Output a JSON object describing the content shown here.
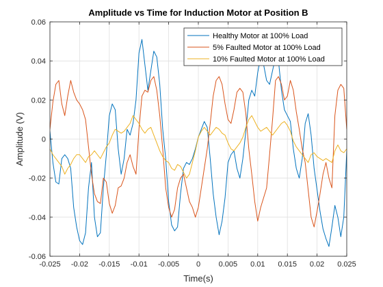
{
  "chart_data": {
    "type": "line",
    "title": "Amplitude vs Time for Induction Motor at Position B",
    "xlabel": "Time(s)",
    "ylabel": "Amplitude (V)",
    "xlim": [
      -0.025,
      0.025
    ],
    "ylim": [
      -0.06,
      0.06
    ],
    "x_ticks": [
      -0.025,
      -0.02,
      -0.015,
      -0.01,
      -0.005,
      0,
      0.005,
      0.01,
      0.015,
      0.02,
      0.025
    ],
    "x_tick_labels": [
      "-0.025",
      "-0.02",
      "-0.015",
      "-0.01",
      "-0.005",
      "0",
      "0.005",
      "0.01",
      "0.015",
      "0.02",
      "0.025"
    ],
    "y_ticks": [
      -0.06,
      -0.04,
      -0.02,
      0,
      0.02,
      0.04,
      0.06
    ],
    "y_tick_labels": [
      "-0.06",
      "-0.04",
      "-0.02",
      "0",
      "0.02",
      "0.04",
      "0.06"
    ],
    "grid": true,
    "legend_position": "top-right",
    "series": [
      {
        "name": "Healthy Motor at 100% Load",
        "color": "#0072BD",
        "x": [
          -0.025,
          -0.0245,
          -0.024,
          -0.0235,
          -0.023,
          -0.0225,
          -0.022,
          -0.0215,
          -0.021,
          -0.0205,
          -0.02,
          -0.0195,
          -0.019,
          -0.0185,
          -0.018,
          -0.0175,
          -0.017,
          -0.0165,
          -0.016,
          -0.0155,
          -0.015,
          -0.0145,
          -0.014,
          -0.0135,
          -0.013,
          -0.0125,
          -0.012,
          -0.0115,
          -0.011,
          -0.0105,
          -0.01,
          -0.0095,
          -0.009,
          -0.0085,
          -0.008,
          -0.0075,
          -0.007,
          -0.0065,
          -0.006,
          -0.0055,
          -0.005,
          -0.0045,
          -0.004,
          -0.0035,
          -0.003,
          -0.0025,
          -0.002,
          -0.0015,
          -0.001,
          -0.0005,
          0,
          0.0005,
          0.001,
          0.0015,
          0.002,
          0.0025,
          0.003,
          0.0035,
          0.004,
          0.0045,
          0.005,
          0.0055,
          0.006,
          0.0065,
          0.007,
          0.0075,
          0.008,
          0.0085,
          0.009,
          0.0095,
          0.01,
          0.0105,
          0.011,
          0.0115,
          0.012,
          0.0125,
          0.013,
          0.0135,
          0.014,
          0.0145,
          0.015,
          0.0155,
          0.016,
          0.0165,
          0.017,
          0.0175,
          0.018,
          0.0185,
          0.019,
          0.0195,
          0.02,
          0.0205,
          0.021,
          0.0215,
          0.022,
          0.0225,
          0.023,
          0.0235,
          0.024,
          0.0245,
          0.025
        ],
        "values": [
          0.004,
          -0.012,
          -0.022,
          -0.023,
          -0.01,
          -0.008,
          -0.01,
          -0.015,
          -0.035,
          -0.045,
          -0.052,
          -0.054,
          -0.048,
          -0.025,
          -0.012,
          -0.04,
          -0.05,
          -0.048,
          -0.025,
          -0.008,
          0.012,
          0.018,
          0.015,
          -0.005,
          -0.018,
          -0.01,
          0.005,
          0.002,
          0.008,
          0.02,
          0.044,
          0.051,
          0.038,
          0.025,
          0.035,
          0.045,
          0.042,
          0.028,
          0.005,
          -0.01,
          -0.032,
          -0.044,
          -0.047,
          -0.045,
          -0.028,
          -0.015,
          -0.012,
          -0.013,
          -0.01,
          -0.005,
          0.001,
          0.005,
          0.009,
          0.006,
          -0.01,
          -0.028,
          -0.04,
          -0.049,
          -0.042,
          -0.03,
          -0.012,
          -0.008,
          -0.006,
          -0.015,
          -0.02,
          -0.01,
          0.004,
          0.02,
          0.025,
          0.022,
          0.034,
          0.042,
          0.038,
          0.03,
          0.028,
          0.035,
          0.042,
          0.04,
          0.025,
          0.015,
          0.012,
          0.009,
          -0.005,
          -0.015,
          -0.02,
          -0.01,
          0.008,
          0.013,
          0.002,
          -0.015,
          -0.026,
          -0.037,
          -0.046,
          -0.051,
          -0.055,
          -0.045,
          -0.034,
          -0.04,
          -0.05,
          -0.04,
          -0.006
        ]
      },
      {
        "name": "5% Faulted Motor at 100% Load",
        "color": "#D95319",
        "x": [
          -0.025,
          -0.0245,
          -0.024,
          -0.0235,
          -0.023,
          -0.0225,
          -0.022,
          -0.0215,
          -0.021,
          -0.0205,
          -0.02,
          -0.0195,
          -0.019,
          -0.0185,
          -0.018,
          -0.0175,
          -0.017,
          -0.0165,
          -0.016,
          -0.0155,
          -0.015,
          -0.0145,
          -0.014,
          -0.0135,
          -0.013,
          -0.0125,
          -0.012,
          -0.0115,
          -0.011,
          -0.0105,
          -0.01,
          -0.0095,
          -0.009,
          -0.0085,
          -0.008,
          -0.0075,
          -0.007,
          -0.0065,
          -0.006,
          -0.0055,
          -0.005,
          -0.0045,
          -0.004,
          -0.0035,
          -0.003,
          -0.0025,
          -0.002,
          -0.0015,
          -0.001,
          -0.0005,
          0,
          0.0005,
          0.001,
          0.0015,
          0.002,
          0.0025,
          0.003,
          0.0035,
          0.004,
          0.0045,
          0.005,
          0.0055,
          0.006,
          0.0065,
          0.007,
          0.0075,
          0.008,
          0.0085,
          0.009,
          0.0095,
          0.01,
          0.0105,
          0.011,
          0.0115,
          0.012,
          0.0125,
          0.013,
          0.0135,
          0.014,
          0.0145,
          0.015,
          0.0155,
          0.016,
          0.0165,
          0.017,
          0.0175,
          0.018,
          0.0185,
          0.019,
          0.0195,
          0.02,
          0.0205,
          0.021,
          0.0215,
          0.022,
          0.0225,
          0.023,
          0.0235,
          0.024,
          0.0245,
          0.025
        ],
        "values": [
          0.005,
          0.019,
          0.028,
          0.03,
          0.018,
          0.012,
          0.022,
          0.03,
          0.024,
          0.02,
          0.018,
          0.015,
          0.01,
          -0.004,
          -0.018,
          -0.028,
          -0.032,
          -0.033,
          -0.02,
          -0.022,
          -0.033,
          -0.038,
          -0.034,
          -0.025,
          -0.024,
          -0.02,
          -0.012,
          -0.008,
          -0.014,
          -0.018,
          0.005,
          0.022,
          0.025,
          0.024,
          0.03,
          0.032,
          0.025,
          0.012,
          -0.005,
          -0.025,
          -0.035,
          -0.04,
          -0.036,
          -0.025,
          -0.02,
          -0.018,
          -0.025,
          -0.032,
          -0.035,
          -0.04,
          -0.035,
          -0.025,
          -0.015,
          -0.005,
          0.008,
          0.022,
          0.03,
          0.032,
          0.028,
          0.018,
          0.01,
          0.008,
          0.015,
          0.024,
          0.026,
          0.024,
          0.013,
          -0.005,
          -0.018,
          -0.032,
          -0.042,
          -0.035,
          -0.03,
          -0.025,
          -0.008,
          0.01,
          0.03,
          0.032,
          0.028,
          0.02,
          0.022,
          0.03,
          0.025,
          0.014,
          0.005,
          -0.005,
          -0.012,
          -0.026,
          -0.04,
          -0.045,
          -0.037,
          -0.028,
          -0.018,
          -0.012,
          -0.02,
          -0.025,
          0.012,
          0.025,
          0.028,
          0.026,
          0.005
        ]
      },
      {
        "name": "10% Faulted Motor at 100% Load",
        "color": "#EDB120",
        "x": [
          -0.025,
          -0.0245,
          -0.024,
          -0.0235,
          -0.023,
          -0.0225,
          -0.022,
          -0.0215,
          -0.021,
          -0.0205,
          -0.02,
          -0.0195,
          -0.019,
          -0.0185,
          -0.018,
          -0.0175,
          -0.017,
          -0.0165,
          -0.016,
          -0.0155,
          -0.015,
          -0.0145,
          -0.014,
          -0.0135,
          -0.013,
          -0.0125,
          -0.012,
          -0.0115,
          -0.011,
          -0.0105,
          -0.01,
          -0.0095,
          -0.009,
          -0.0085,
          -0.008,
          -0.0075,
          -0.007,
          -0.0065,
          -0.006,
          -0.0055,
          -0.005,
          -0.0045,
          -0.004,
          -0.0035,
          -0.003,
          -0.0025,
          -0.002,
          -0.0015,
          -0.001,
          -0.0005,
          0,
          0.0005,
          0.001,
          0.0015,
          0.002,
          0.0025,
          0.003,
          0.0035,
          0.004,
          0.0045,
          0.005,
          0.0055,
          0.006,
          0.0065,
          0.007,
          0.0075,
          0.008,
          0.0085,
          0.009,
          0.0095,
          0.01,
          0.0105,
          0.011,
          0.0115,
          0.012,
          0.0125,
          0.013,
          0.0135,
          0.014,
          0.0145,
          0.015,
          0.0155,
          0.016,
          0.0165,
          0.017,
          0.0175,
          0.018,
          0.0185,
          0.019,
          0.0195,
          0.02,
          0.0205,
          0.021,
          0.0215,
          0.022,
          0.0225,
          0.023,
          0.0235,
          0.024,
          0.0245,
          0.025
        ],
        "values": [
          -0.005,
          -0.008,
          -0.01,
          -0.012,
          -0.014,
          -0.018,
          -0.015,
          -0.013,
          -0.01,
          -0.008,
          -0.008,
          -0.01,
          -0.012,
          -0.009,
          -0.008,
          -0.006,
          -0.008,
          -0.01,
          -0.007,
          -0.004,
          -0.002,
          0.002,
          0.005,
          0.004,
          0.003,
          0.004,
          0.006,
          0.008,
          0.012,
          0.01,
          0.008,
          0.005,
          0.003,
          0.005,
          0.006,
          0.002,
          -0.002,
          -0.006,
          -0.009,
          -0.011,
          -0.012,
          -0.015,
          -0.016,
          -0.013,
          -0.014,
          -0.017,
          -0.02,
          -0.018,
          -0.012,
          -0.006,
          0.001,
          0.004,
          0.006,
          0.004,
          0.002,
          0.004,
          0.006,
          0.005,
          0.003,
          0.002,
          -0.002,
          -0.005,
          -0.006,
          -0.004,
          -0.002,
          0.001,
          0.006,
          0.01,
          0.012,
          0.009,
          0.006,
          0.004,
          0.005,
          0.006,
          0.004,
          0.002,
          0.004,
          0.006,
          0.008,
          0.009,
          0.007,
          0.004,
          -0.001,
          -0.004,
          -0.006,
          -0.008,
          -0.01,
          -0.012,
          -0.008,
          -0.007,
          -0.009,
          -0.01,
          -0.011,
          -0.01,
          -0.011,
          -0.012,
          -0.006,
          -0.003,
          -0.006,
          -0.007,
          -0.005
        ]
      }
    ]
  }
}
